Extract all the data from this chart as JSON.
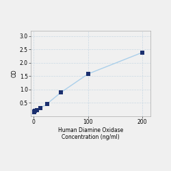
{
  "x": [
    0.781,
    1.563,
    3.125,
    6.25,
    12.5,
    25,
    50,
    100,
    200
  ],
  "y": [
    0.158,
    0.175,
    0.199,
    0.234,
    0.295,
    0.468,
    0.886,
    1.583,
    2.388
  ],
  "xlabel_line1": "Human Diamine Oxidase",
  "xlabel_line2": "Concentration (ng/ml)",
  "ylabel": "OD",
  "xlim": [
    -5,
    215
  ],
  "ylim": [
    0,
    3.2
  ],
  "xticks": [
    0,
    100,
    200
  ],
  "yticks": [
    0.5,
    1.0,
    1.5,
    2.0,
    2.5,
    3.0
  ],
  "line_color": "#aacfea",
  "marker_color": "#1b2f6e",
  "grid_color": "#c8d8e4",
  "bg_color": "#f0f0f0",
  "plot_bg_color": "#f0f0f0",
  "marker_size": 18,
  "line_width": 1.0,
  "xlabel_fontsize": 5.5,
  "ylabel_fontsize": 5.5,
  "tick_fontsize": 5.5
}
